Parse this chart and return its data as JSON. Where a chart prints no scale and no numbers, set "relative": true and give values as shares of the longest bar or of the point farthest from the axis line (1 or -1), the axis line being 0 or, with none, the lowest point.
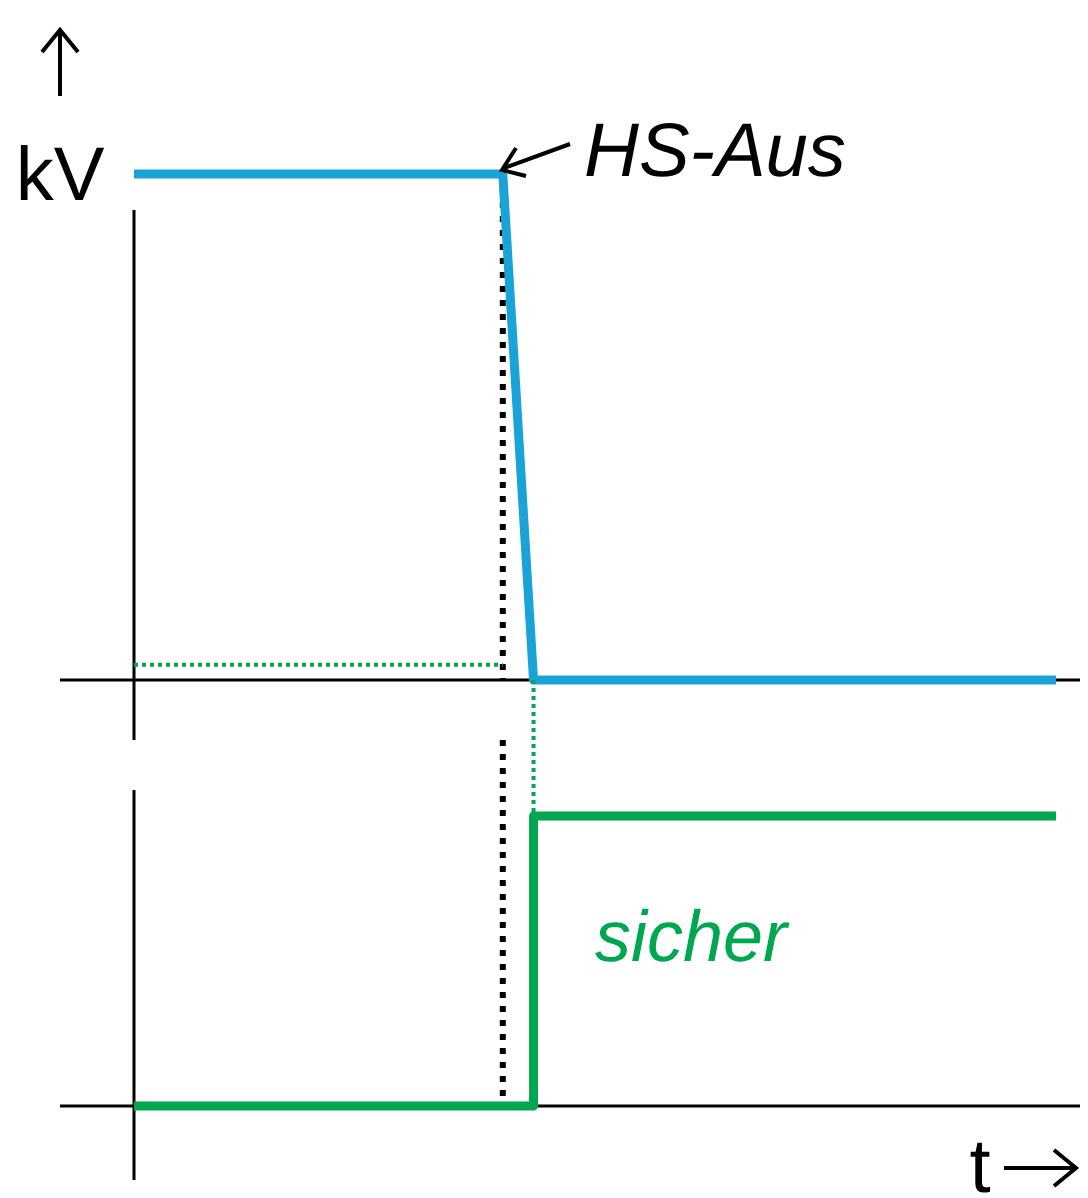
{
  "chart_data": [
    {
      "type": "line",
      "ylabel": "kV",
      "relative": true,
      "tick_labels": false,
      "annotations": [
        "HS-Aus"
      ],
      "categories": [
        null,
        null,
        null,
        null,
        null,
        null,
        null,
        null,
        null,
        null,
        null,
        null,
        null,
        null,
        null,
        null,
        null,
        null,
        null,
        null,
        null,
        null,
        null,
        null,
        null,
        null,
        null,
        null,
        null,
        null,
        null
      ],
      "series": [
        {
          "color": "#1aa3d6",
          "values": [
            1,
            1,
            1,
            1,
            1,
            1,
            1,
            1,
            1,
            1,
            1,
            1,
            1,
            0,
            0,
            0,
            0,
            0,
            0,
            0,
            0,
            0,
            0,
            0,
            0,
            0,
            0,
            0,
            0,
            0,
            0
          ]
        },
        {
          "color": "#00a650",
          "line_style": "dotted",
          "values": [
            0.03,
            0.03,
            0.03,
            0.03,
            0.03,
            0.03,
            0.03,
            0.03,
            0.03,
            0.03,
            0.03,
            0.03,
            0.03,
            null,
            null,
            null,
            null,
            null,
            null,
            null,
            null,
            null,
            null,
            null,
            null,
            null,
            null,
            null,
            null,
            null,
            null
          ]
        }
      ]
    },
    {
      "type": "step",
      "xlabel": "t",
      "relative": true,
      "tick_labels": false,
      "categories": [
        null,
        null,
        null,
        null,
        null,
        null,
        null,
        null,
        null,
        null,
        null,
        null,
        null,
        null,
        null,
        null,
        null,
        null,
        null,
        null,
        null,
        null,
        null,
        null,
        null,
        null,
        null,
        null,
        null,
        null,
        null
      ],
      "series": [
        {
          "name": "sicher",
          "color": "#00a650",
          "values": [
            0,
            0,
            0,
            0,
            0,
            0,
            0,
            0,
            0,
            0,
            0,
            0,
            0,
            1,
            1,
            1,
            1,
            1,
            1,
            1,
            1,
            1,
            1,
            1,
            1,
            1,
            1,
            1,
            1,
            1,
            1
          ]
        }
      ]
    }
  ]
}
